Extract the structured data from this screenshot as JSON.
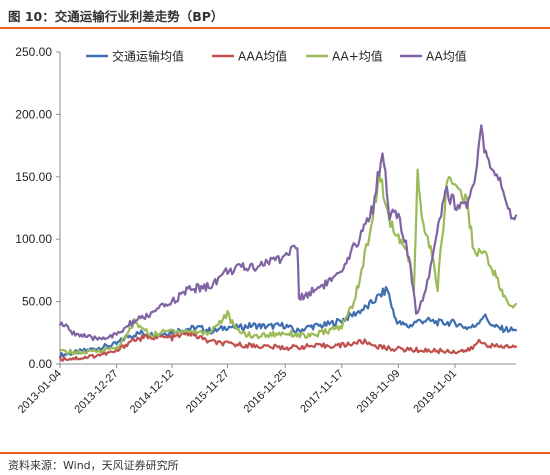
{
  "header": {
    "title": "图 10：交通运输行业利差走势（BP）"
  },
  "footer": {
    "source": "资料来源：Wind，天风证券研究所"
  },
  "chart_data": {
    "type": "line",
    "ylim": [
      0,
      250
    ],
    "yticks": [
      "0.00",
      "50.00",
      "100.00",
      "150.00",
      "200.00",
      "250.00"
    ],
    "xlim": [
      "2013-01-04",
      "2020-11-20"
    ],
    "xtick_labels": [
      "2013-01-04",
      "2013-12-27",
      "2014-12-12",
      "2015-11-27",
      "2016-11-25",
      "2017-11-17",
      "2018-11-09",
      "2019-11-01"
    ],
    "legend_position": "top",
    "grid": false,
    "series": [
      {
        "name": "交通运输均值",
        "color": "#3f6fb0",
        "points": [
          [
            "2013-01-04",
            7
          ],
          [
            "2013-04-01",
            9
          ],
          [
            "2013-08-01",
            12
          ],
          [
            "2013-12-27",
            16
          ],
          [
            "2014-03-01",
            22
          ],
          [
            "2014-06-01",
            25
          ],
          [
            "2014-09-01",
            23
          ],
          [
            "2014-12-12",
            26
          ],
          [
            "2015-03-01",
            28
          ],
          [
            "2015-06-01",
            29
          ],
          [
            "2015-09-01",
            26
          ],
          [
            "2015-11-27",
            30
          ],
          [
            "2016-02-01",
            29
          ],
          [
            "2016-05-01",
            31
          ],
          [
            "2016-08-01",
            30
          ],
          [
            "2016-11-25",
            31
          ],
          [
            "2017-02-01",
            26
          ],
          [
            "2017-05-01",
            30
          ],
          [
            "2017-08-01",
            31
          ],
          [
            "2017-11-17",
            35
          ],
          [
            "2018-02-01",
            40
          ],
          [
            "2018-05-01",
            46
          ],
          [
            "2018-07-15",
            55
          ],
          [
            "2018-09-01",
            60
          ],
          [
            "2018-10-15",
            38
          ],
          [
            "2018-11-09",
            33
          ],
          [
            "2019-01-15",
            30
          ],
          [
            "2019-03-01",
            34
          ],
          [
            "2019-05-01",
            35
          ],
          [
            "2019-08-01",
            33
          ],
          [
            "2019-11-01",
            33
          ],
          [
            "2020-01-15",
            29
          ],
          [
            "2020-03-01",
            30
          ],
          [
            "2020-05-01",
            39
          ],
          [
            "2020-07-01",
            30
          ],
          [
            "2020-09-01",
            28
          ],
          [
            "2020-11-20",
            27
          ]
        ]
      },
      {
        "name": "AAA均值",
        "color": "#c0504d",
        "points": [
          [
            "2013-01-04",
            4
          ],
          [
            "2013-06-01",
            5
          ],
          [
            "2013-12-27",
            10
          ],
          [
            "2014-04-01",
            19
          ],
          [
            "2014-08-01",
            22
          ],
          [
            "2014-12-12",
            21
          ],
          [
            "2015-04-01",
            25
          ],
          [
            "2015-08-01",
            18
          ],
          [
            "2015-11-27",
            16
          ],
          [
            "2016-04-01",
            15
          ],
          [
            "2016-11-25",
            13
          ],
          [
            "2017-04-01",
            14
          ],
          [
            "2017-11-17",
            15
          ],
          [
            "2018-04-01",
            18
          ],
          [
            "2018-08-01",
            13
          ],
          [
            "2018-11-09",
            12
          ],
          [
            "2019-04-01",
            11
          ],
          [
            "2019-11-01",
            10
          ],
          [
            "2020-02-01",
            11
          ],
          [
            "2020-04-01",
            18
          ],
          [
            "2020-07-01",
            14
          ],
          [
            "2020-11-20",
            14
          ]
        ]
      },
      {
        "name": "AA+均值",
        "color": "#9bbb59",
        "points": [
          [
            "2013-01-04",
            10
          ],
          [
            "2013-06-01",
            9
          ],
          [
            "2013-12-27",
            13
          ],
          [
            "2014-03-01",
            22
          ],
          [
            "2014-04-15",
            34
          ],
          [
            "2014-08-01",
            23
          ],
          [
            "2014-12-12",
            27
          ],
          [
            "2015-04-01",
            26
          ],
          [
            "2015-08-01",
            25
          ],
          [
            "2015-11-27",
            40
          ],
          [
            "2016-01-15",
            28
          ],
          [
            "2016-05-01",
            22
          ],
          [
            "2016-11-25",
            25
          ],
          [
            "2017-05-01",
            22
          ],
          [
            "2017-11-17",
            30
          ],
          [
            "2018-02-01",
            50
          ],
          [
            "2018-04-01",
            80
          ],
          [
            "2018-06-01",
            120
          ],
          [
            "2018-07-20",
            153
          ],
          [
            "2018-08-15",
            125
          ],
          [
            "2018-09-10",
            120
          ],
          [
            "2018-10-20",
            100
          ],
          [
            "2018-11-09",
            102
          ],
          [
            "2019-01-01",
            90
          ],
          [
            "2019-02-15",
            60
          ],
          [
            "2019-03-10",
            150
          ],
          [
            "2019-04-15",
            110
          ],
          [
            "2019-06-01",
            92
          ],
          [
            "2019-07-15",
            62
          ],
          [
            "2019-09-15",
            150
          ],
          [
            "2019-11-01",
            145
          ],
          [
            "2020-01-15",
            130
          ],
          [
            "2020-03-01",
            90
          ],
          [
            "2020-05-01",
            90
          ],
          [
            "2020-07-01",
            75
          ],
          [
            "2020-09-01",
            55
          ],
          [
            "2020-10-15",
            45
          ],
          [
            "2020-11-20",
            48
          ]
        ]
      },
      {
        "name": "AA均值",
        "color": "#8064a2",
        "points": [
          [
            "2013-01-04",
            33
          ],
          [
            "2013-04-01",
            25
          ],
          [
            "2013-08-01",
            20
          ],
          [
            "2013-12-27",
            23
          ],
          [
            "2014-04-01",
            33
          ],
          [
            "2014-08-01",
            40
          ],
          [
            "2014-12-12",
            50
          ],
          [
            "2015-04-01",
            60
          ],
          [
            "2015-08-01",
            62
          ],
          [
            "2015-11-27",
            75
          ],
          [
            "2016-05-01",
            78
          ],
          [
            "2016-11-01",
            85
          ],
          [
            "2017-01-10",
            92
          ],
          [
            "2017-02-10",
            95
          ],
          [
            "2017-02-20",
            52
          ],
          [
            "2017-06-01",
            60
          ],
          [
            "2017-11-17",
            72
          ],
          [
            "2018-03-01",
            100
          ],
          [
            "2018-06-01",
            125
          ],
          [
            "2018-08-01",
            173
          ],
          [
            "2018-09-15",
            120
          ],
          [
            "2018-11-09",
            118
          ],
          [
            "2019-01-15",
            85
          ],
          [
            "2019-03-01",
            40
          ],
          [
            "2019-05-01",
            60
          ],
          [
            "2019-07-01",
            100
          ],
          [
            "2019-09-01",
            140
          ],
          [
            "2019-11-01",
            128
          ],
          [
            "2020-01-15",
            128
          ],
          [
            "2020-03-01",
            140
          ],
          [
            "2020-04-15",
            188
          ],
          [
            "2020-06-01",
            158
          ],
          [
            "2020-08-01",
            148
          ],
          [
            "2020-10-01",
            120
          ],
          [
            "2020-11-20",
            119
          ]
        ]
      }
    ]
  }
}
